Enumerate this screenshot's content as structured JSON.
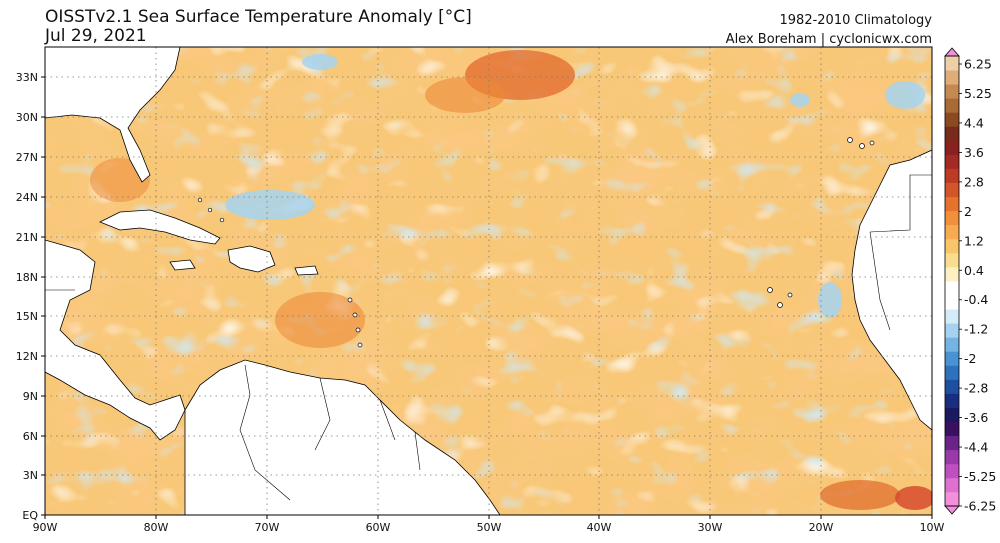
{
  "header": {
    "title_line1": "OISSTv2.1 Sea Surface Temperature Anomaly [°C]",
    "title_line2": "Jul 29, 2021",
    "climatology": "1982-2010 Climatology",
    "credit": "Alex Boreham | cyclonicwx.com"
  },
  "axes": {
    "lon_ticks": [
      "90W",
      "80W",
      "70W",
      "60W",
      "50W",
      "40W",
      "30W",
      "20W",
      "10W"
    ],
    "lat_ticks": [
      "EQ",
      "3N",
      "6N",
      "9N",
      "12N",
      "15N",
      "18N",
      "21N",
      "24N",
      "27N",
      "30N",
      "33N"
    ]
  },
  "colorbar": {
    "labels": [
      "6.25",
      "5.25",
      "4.4",
      "3.6",
      "2.8",
      "2",
      "1.2",
      "0.4",
      "-0.4",
      "-1.2",
      "-2",
      "-2.8",
      "-3.6",
      "-4.4",
      "-5.25",
      "-6.25"
    ],
    "colors": [
      "#f290dc",
      "#e070d0",
      "#c050c0",
      "#9a3aa8",
      "#6a2488",
      "#3a1060",
      "#1a1a60",
      "#1a2e80",
      "#1f4fa0",
      "#2c72bd",
      "#4a93d2",
      "#74b4e2",
      "#a6d2f0",
      "#d4ebf8",
      "#ffffff",
      "#ffffff",
      "#fdf1c4",
      "#fbdd90",
      "#f9c569",
      "#f6ab52",
      "#f08f3c",
      "#e4732d",
      "#d3552a",
      "#bd3a25",
      "#a52a23",
      "#8a2121",
      "#7a2a1a",
      "#8c4a22",
      "#a86a36",
      "#c58a52",
      "#dfae78",
      "#eecfa8"
    ]
  }
}
